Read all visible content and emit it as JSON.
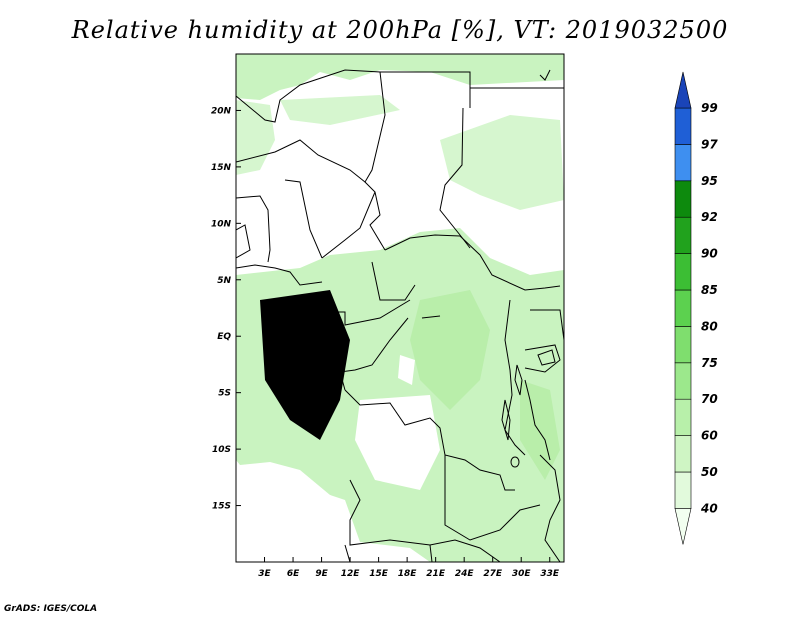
{
  "title": "Relative humidity at 200hPa [%], VT: 2019032500",
  "credit": "GrADS: IGES/COLA",
  "map": {
    "lon_range": [
      0,
      34.5
    ],
    "lat_range": [
      -20,
      25
    ],
    "lon_ticks": [
      "3E",
      "6E",
      "9E",
      "12E",
      "15E",
      "18E",
      "21E",
      "24E",
      "27E",
      "30E",
      "33E"
    ],
    "lat_ticks": [
      "20N",
      "15N",
      "10N",
      "5N",
      "EQ",
      "5S",
      "10S",
      "15S"
    ]
  },
  "colorbar": {
    "levels": [
      "40",
      "50",
      "60",
      "70",
      "75",
      "80",
      "85",
      "90",
      "92",
      "95",
      "97",
      "99"
    ],
    "colors": [
      "#f2fff0",
      "#e2fadc",
      "#cff5c4",
      "#b8f0aa",
      "#9ce88c",
      "#7fde6e",
      "#5cd14f",
      "#3cbe34",
      "#21a21d",
      "#0d8a0d",
      "#3e8ff0",
      "#1f5fd6",
      "#1a44b8"
    ]
  },
  "chart_data": {
    "type": "heatmap",
    "title": "Relative humidity at 200hPa [%], VT: 2019032500",
    "xlabel": "",
    "ylabel": "",
    "x_range": [
      0,
      34.5
    ],
    "y_range": [
      -20,
      25
    ],
    "legend": "right"
  }
}
